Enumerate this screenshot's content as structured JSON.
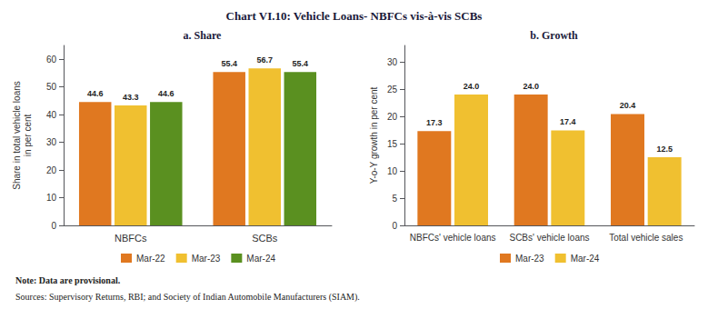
{
  "title": "Chart VI.10: Vehicle Loans- NBFCs vis-à-vis SCBs",
  "annotations": [
    "Note: Data are provisional.",
    "Sources: Supervisory Returns, RBI; and Society of Indian Automobile Manufacturers (SIAM)."
  ],
  "chart_data": [
    {
      "type": "bar",
      "title": "a. Share",
      "categories": [
        "NBFCs",
        "SCBs"
      ],
      "series": [
        {
          "name": "Mar-22",
          "color": "#e07820",
          "values": [
            44.6,
            55.4
          ]
        },
        {
          "name": "Mar-23",
          "color": "#f0c030",
          "values": [
            43.3,
            56.7
          ]
        },
        {
          "name": "Mar-24",
          "color": "#5a9020",
          "values": [
            44.6,
            55.4
          ]
        }
      ],
      "ylabel": "Share in total vehicle loans\nin per cent",
      "ylim": [
        0,
        65
      ],
      "yticks": [
        0,
        10,
        20,
        30,
        40,
        50,
        60
      ],
      "grid": false,
      "legend": "bottom",
      "data_labels": true
    },
    {
      "type": "bar",
      "title": "b. Growth",
      "categories": [
        "NBFCs' vehicle loans",
        "SCBs' vehicle loans",
        "Total vehicle sales"
      ],
      "series": [
        {
          "name": "Mar-23",
          "color": "#e07820",
          "values": [
            17.3,
            24.0,
            20.4
          ],
          "value_labels": [
            "17.3",
            "24.0",
            "20.4"
          ]
        },
        {
          "name": "Mar-24",
          "color": "#f0c030",
          "values": [
            24.0,
            17.4,
            12.5
          ],
          "value_labels": [
            "24.0",
            "17.4",
            "12.5"
          ]
        }
      ],
      "ylabel": "Y-o-Y growth in per cent",
      "ylim": [
        0,
        33
      ],
      "yticks": [
        0,
        5,
        10,
        15,
        20,
        25,
        30
      ],
      "grid": false,
      "legend": "bottom",
      "data_labels": true
    }
  ]
}
